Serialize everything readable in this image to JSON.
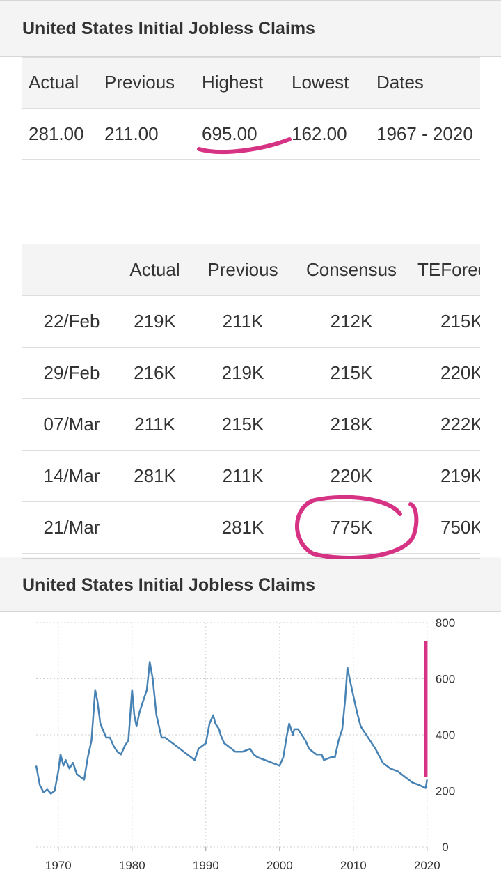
{
  "header1": {
    "title": "United States Initial Jobless Claims"
  },
  "summary": {
    "headers": [
      "Actual",
      "Previous",
      "Highest",
      "Lowest",
      "Dates"
    ],
    "values": [
      "281.00",
      "211.00",
      "695.00",
      "162.00",
      "1967 - 2020"
    ]
  },
  "forecast": {
    "headers": [
      "",
      "Actual",
      "Previous",
      "Consensus",
      "TEForecast"
    ],
    "rows": [
      [
        "22/Feb",
        "219K",
        "211K",
        "212K",
        "215K"
      ],
      [
        "29/Feb",
        "216K",
        "219K",
        "215K",
        "220K"
      ],
      [
        "07/Mar",
        "211K",
        "215K",
        "218K",
        "222K"
      ],
      [
        "14/Mar",
        "281K",
        "211K",
        "220K",
        "219K"
      ],
      [
        "21/Mar",
        "",
        "281K",
        "775K",
        "750K"
      ]
    ]
  },
  "header2": {
    "title": "United States Initial Jobless Claims"
  },
  "chart_data": {
    "type": "line",
    "title": "",
    "xlabel": "",
    "ylabel": "",
    "xlim": [
      1967,
      2020.3
    ],
    "ylim": [
      0,
      800
    ],
    "x_ticks": [
      "1970",
      "1980",
      "1990",
      "2000",
      "2010",
      "2020"
    ],
    "y_ticks": [
      "0",
      "200",
      "400",
      "600",
      "800"
    ],
    "grid": true,
    "line_color": "#4682b4",
    "highlight_color": "#d63384",
    "highlight_bar": {
      "x": 2020.2,
      "y_from": 250,
      "y_to": 735
    },
    "series": [
      {
        "x": [
          1967,
          1967.5,
          1968,
          1968.5,
          1969,
          1969.5,
          1970,
          1970.3,
          1970.7,
          1971,
          1971.5,
          1972,
          1972.5,
          1973,
          1973.5,
          1974,
          1974.5,
          1975,
          1975.3,
          1975.7,
          1976,
          1976.5,
          1977,
          1977.5,
          1978,
          1978.5,
          1979,
          1979.5,
          1980,
          1980.3,
          1980.6,
          1981,
          1981.5,
          1982,
          1982.4,
          1982.8,
          1983.3,
          1984,
          1984.5,
          1985,
          1986,
          1987,
          1988,
          1988.5,
          1989,
          1989.5,
          1990,
          1990.5,
          1991,
          1991.3,
          1991.8,
          1992,
          1992.5,
          1993,
          1993.5,
          1994,
          1995,
          1996,
          1996.5,
          1997,
          1998,
          1999,
          2000,
          2000.5,
          2001,
          2001.3,
          2001.8,
          2002,
          2002.5,
          2003,
          2003.5,
          2004,
          2004.5,
          2005,
          2005.7,
          2006,
          2007,
          2007.5,
          2008,
          2008.5,
          2008.9,
          2009.2,
          2009.5,
          2009.9,
          2010.5,
          2011,
          2012,
          2013,
          2014,
          2015,
          2016,
          2017,
          2018,
          2019,
          2019.8,
          2020
        ],
        "y": [
          290,
          220,
          195,
          205,
          190,
          200,
          270,
          330,
          290,
          310,
          280,
          300,
          260,
          250,
          240,
          320,
          380,
          560,
          520,
          440,
          420,
          390,
          390,
          360,
          340,
          330,
          360,
          380,
          560,
          470,
          430,
          480,
          520,
          560,
          660,
          600,
          470,
          390,
          390,
          380,
          360,
          340,
          320,
          310,
          350,
          360,
          370,
          440,
          470,
          440,
          420,
          400,
          370,
          360,
          350,
          340,
          340,
          350,
          330,
          320,
          310,
          300,
          290,
          320,
          400,
          440,
          400,
          420,
          420,
          400,
          380,
          350,
          340,
          330,
          330,
          310,
          320,
          320,
          380,
          420,
          530,
          640,
          600,
          550,
          480,
          430,
          390,
          350,
          300,
          280,
          270,
          250,
          230,
          220,
          210,
          240
        ]
      }
    ]
  }
}
